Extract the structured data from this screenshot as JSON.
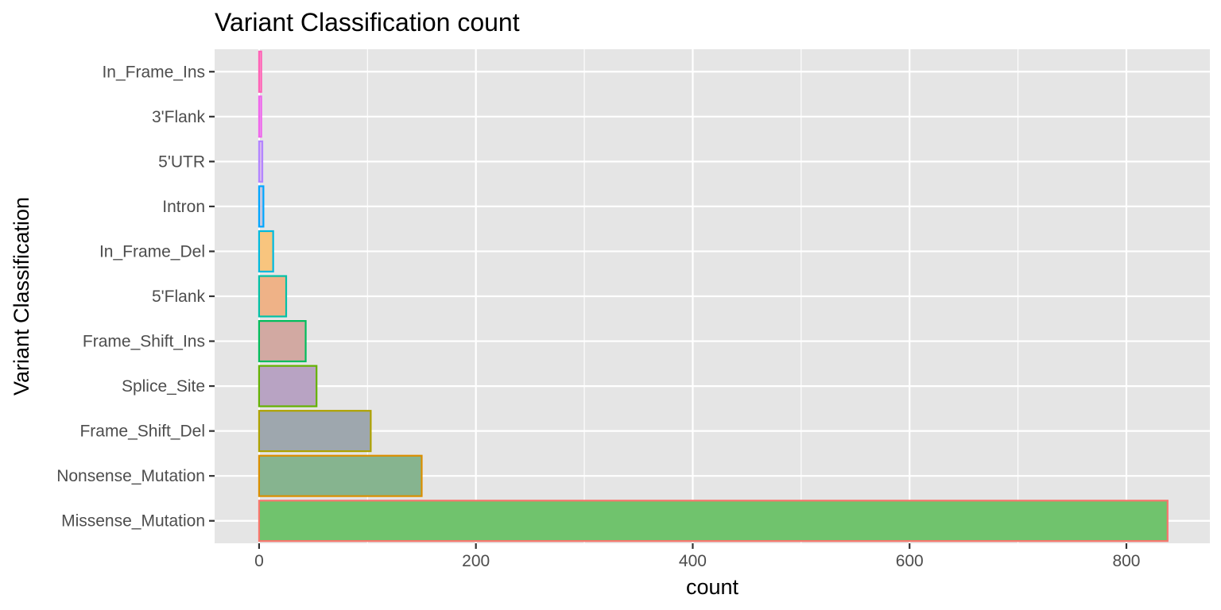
{
  "chart_data": {
    "type": "bar",
    "orientation": "horizontal",
    "title": "Variant Classification count",
    "xlabel": "count",
    "ylabel": "Variant Classification",
    "xlim": [
      -41,
      877
    ],
    "x_ticks": [
      0,
      200,
      400,
      600,
      800
    ],
    "x_tick_labels": [
      "0",
      "200",
      "400",
      "600",
      "800"
    ],
    "grid": true,
    "legend": "none",
    "panel_background": "#e5e5e5",
    "categories": [
      "Missense_Mutation",
      "Nonsense_Mutation",
      "Frame_Shift_Del",
      "Splice_Site",
      "Frame_Shift_Ins",
      "5'Flank",
      "In_Frame_Del",
      "Intron",
      "5'UTR",
      "3'Flank",
      "In_Frame_Ins"
    ],
    "values": [
      838,
      150,
      103,
      53,
      43,
      25,
      13,
      4,
      3,
      2,
      2
    ],
    "fill_colors": [
      "#70c36d",
      "#86b48f",
      "#9ea7ae",
      "#b8a3c3",
      "#d2a9a2",
      "#efb287",
      "#f8c57e",
      "#c3c6e0",
      "#d7b8f0",
      "#e8b4f0",
      "#fab0d4"
    ],
    "outline_colors": [
      "#f8766d",
      "#db8e00",
      "#aea200",
      "#64b200",
      "#00bd5c",
      "#00c1a7",
      "#00bade",
      "#00a6ff",
      "#b385ff",
      "#ef67eb",
      "#ff63b6"
    ]
  }
}
